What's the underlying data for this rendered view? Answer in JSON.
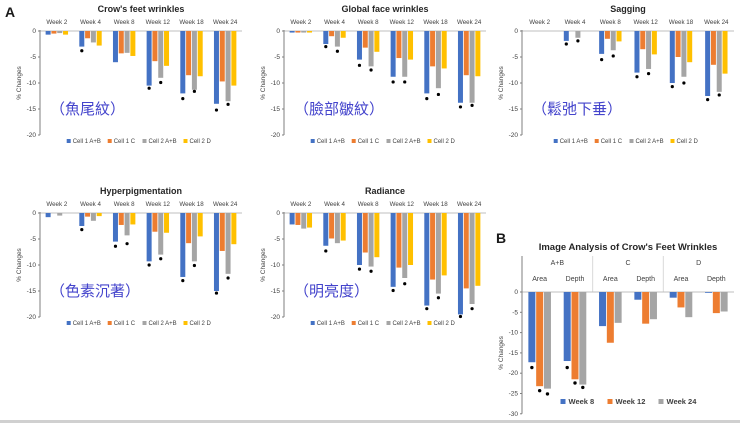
{
  "page": {
    "panel_a_label": "A",
    "panel_b_label": "B"
  },
  "colors": {
    "blue": "#4472C4",
    "orange": "#ED7D31",
    "gray": "#A5A5A5",
    "yellow": "#FFC000",
    "sig_dot": "#000000",
    "caption": "#4444CC",
    "title_text": "#262626",
    "axis_text": "#404040",
    "axis_line": "#7f7f7f",
    "grid_line": "#bfbfbf",
    "separator": "#d9d9d9"
  },
  "chart_data": [
    {
      "id": "crows-feet-wrinkles",
      "panel": "A",
      "type": "bar",
      "title": "Crow's feet wrinkles",
      "caption": "（魚尾紋）",
      "ylabel": "% Changes",
      "ylim": [
        0,
        -20
      ],
      "yticks": [
        0,
        -5,
        -10,
        -15,
        -20
      ],
      "categories": [
        "Week 2",
        "Week 4",
        "Week 8",
        "Week 12",
        "Week 18",
        "Week 24"
      ],
      "legend_position": "bottom-inside",
      "series": [
        {
          "name": "Cell 1 A+B",
          "color": "blue",
          "values": [
            -0.7,
            -3.0,
            -6.0,
            -10.5,
            -12.0,
            -14.0
          ]
        },
        {
          "name": "Cell 1 C",
          "color": "orange",
          "values": [
            -0.5,
            -1.4,
            -4.3,
            -5.8,
            -8.5,
            -9.7
          ]
        },
        {
          "name": "Cell 2 A+B",
          "color": "gray",
          "values": [
            -0.4,
            -2.2,
            -4.2,
            -9.0,
            -11.3,
            -13.5
          ]
        },
        {
          "name": "Cell 2 D",
          "color": "yellow",
          "values": [
            -0.7,
            -2.8,
            -4.8,
            -6.7,
            -8.7,
            -10.5
          ]
        }
      ],
      "sig_dots": [
        {
          "category": "Week 4",
          "series": "Cell 1 A+B",
          "y": -3.8
        },
        {
          "category": "Week 12",
          "series": "Cell 1 A+B",
          "y": -11.0
        },
        {
          "category": "Week 12",
          "series": "Cell 2 A+B",
          "y": -9.9
        },
        {
          "category": "Week 18",
          "series": "Cell 1 A+B",
          "y": -13.0
        },
        {
          "category": "Week 18",
          "series": "Cell 2 A+B",
          "y": -11.6
        },
        {
          "category": "Week 24",
          "series": "Cell 1 A+B",
          "y": -15.2
        },
        {
          "category": "Week 24",
          "series": "Cell 2 A+B",
          "y": -14.1
        }
      ]
    },
    {
      "id": "global-face-wrinkles",
      "panel": "A",
      "type": "bar",
      "title": "Global face wrinkles",
      "caption": "（臉部皺紋）",
      "ylabel": "% Changes",
      "ylim": [
        0,
        -20
      ],
      "yticks": [
        0,
        -5,
        -10,
        -15,
        -20
      ],
      "categories": [
        "Week 2",
        "Week 4",
        "Week 8",
        "Week 12",
        "Week 18",
        "Week 24"
      ],
      "legend_position": "bottom-inside",
      "series": [
        {
          "name": "Cell 1 A+B",
          "color": "blue",
          "values": [
            -0.3,
            -2.5,
            -5.5,
            -8.8,
            -12.0,
            -13.8
          ]
        },
        {
          "name": "Cell 1 C",
          "color": "orange",
          "values": [
            -0.3,
            -1.0,
            -3.2,
            -5.2,
            -6.8,
            -8.5
          ]
        },
        {
          "name": "Cell 2 A+B",
          "color": "gray",
          "values": [
            -0.3,
            -3.0,
            -6.8,
            -8.8,
            -11.0,
            -13.8
          ]
        },
        {
          "name": "Cell 2 D",
          "color": "yellow",
          "values": [
            -0.3,
            -1.3,
            -4.0,
            -5.5,
            -7.2,
            -8.7
          ]
        }
      ],
      "sig_dots": [
        {
          "category": "Week 4",
          "series": "Cell 1 A+B",
          "y": -3.0
        },
        {
          "category": "Week 4",
          "series": "Cell 2 A+B",
          "y": -3.9
        },
        {
          "category": "Week 8",
          "series": "Cell 1 A+B",
          "y": -6.6
        },
        {
          "category": "Week 8",
          "series": "Cell 2 A+B",
          "y": -7.5
        },
        {
          "category": "Week 12",
          "series": "Cell 1 A+B",
          "y": -9.8
        },
        {
          "category": "Week 12",
          "series": "Cell 2 A+B",
          "y": -9.8
        },
        {
          "category": "Week 18",
          "series": "Cell 1 A+B",
          "y": -13.0
        },
        {
          "category": "Week 18",
          "series": "Cell 2 A+B",
          "y": -12.2
        },
        {
          "category": "Week 24",
          "series": "Cell 1 A+B",
          "y": -14.6
        },
        {
          "category": "Week 24",
          "series": "Cell 2 A+B",
          "y": -14.3
        }
      ]
    },
    {
      "id": "sagging",
      "panel": "A",
      "type": "bar",
      "title": "Sagging",
      "caption": "（鬆弛下垂）",
      "ylabel": "% Changes",
      "ylim": [
        0,
        -20
      ],
      "yticks": [
        0,
        -5,
        -10,
        -15,
        -20
      ],
      "categories": [
        "Week 2",
        "Week 4",
        "Week 8",
        "Week 12",
        "Week 18",
        "Week 24"
      ],
      "legend_position": "bottom-inside",
      "series": [
        {
          "name": "Cell 1 A+B",
          "color": "blue",
          "values": [
            0,
            -1.9,
            -4.4,
            -8.0,
            -10.0,
            -12.5
          ]
        },
        {
          "name": "Cell 1 C",
          "color": "orange",
          "values": [
            0,
            0,
            -1.5,
            -3.5,
            -5.0,
            -6.5
          ]
        },
        {
          "name": "Cell 2 A+B",
          "color": "gray",
          "values": [
            0,
            -1.3,
            -3.7,
            -7.3,
            -8.8,
            -11.7
          ]
        },
        {
          "name": "Cell 2 D",
          "color": "yellow",
          "values": [
            0,
            0,
            -2.0,
            -4.5,
            -6.0,
            -8.2
          ]
        }
      ],
      "sig_dots": [
        {
          "category": "Week 4",
          "series": "Cell 1 A+B",
          "y": -2.5
        },
        {
          "category": "Week 4",
          "series": "Cell 2 A+B",
          "y": -1.9
        },
        {
          "category": "Week 8",
          "series": "Cell 1 A+B",
          "y": -5.5
        },
        {
          "category": "Week 8",
          "series": "Cell 2 A+B",
          "y": -4.8
        },
        {
          "category": "Week 12",
          "series": "Cell 1 A+B",
          "y": -8.8
        },
        {
          "category": "Week 12",
          "series": "Cell 2 A+B",
          "y": -8.2
        },
        {
          "category": "Week 18",
          "series": "Cell 1 A+B",
          "y": -10.7
        },
        {
          "category": "Week 18",
          "series": "Cell 2 A+B",
          "y": -10.0
        },
        {
          "category": "Week 24",
          "series": "Cell 1 A+B",
          "y": -13.2
        },
        {
          "category": "Week 24",
          "series": "Cell 2 A+B",
          "y": -12.3
        }
      ]
    },
    {
      "id": "hyperpigmentation",
      "panel": "A",
      "type": "bar",
      "title": "Hyperpigmentation",
      "caption": "（色素沉著）",
      "ylabel": "% Changes",
      "ylim": [
        0,
        -20
      ],
      "yticks": [
        0,
        -5,
        -10,
        -15,
        -20
      ],
      "categories": [
        "Week 2",
        "Week 4",
        "Week 8",
        "Week 12",
        "Week 18",
        "Week 24"
      ],
      "legend_position": "bottom-inside",
      "series": [
        {
          "name": "Cell 1 A+B",
          "color": "blue",
          "values": [
            -0.8,
            -2.5,
            -5.5,
            -9.3,
            -12.3,
            -15.0
          ]
        },
        {
          "name": "Cell 1 C",
          "color": "orange",
          "values": [
            0,
            -0.7,
            -2.3,
            -3.6,
            -5.8,
            -7.3
          ]
        },
        {
          "name": "Cell 2 A+B",
          "color": "gray",
          "values": [
            -0.5,
            -1.5,
            -4.3,
            -8.0,
            -9.3,
            -11.7
          ]
        },
        {
          "name": "Cell 2 D",
          "color": "yellow",
          "values": [
            0,
            -0.6,
            -2.2,
            -3.8,
            -4.5,
            -6.0
          ]
        }
      ],
      "sig_dots": [
        {
          "category": "Week 4",
          "series": "Cell 1 A+B",
          "y": -3.2
        },
        {
          "category": "Week 8",
          "series": "Cell 1 A+B",
          "y": -6.4
        },
        {
          "category": "Week 8",
          "series": "Cell 2 A+B",
          "y": -5.9
        },
        {
          "category": "Week 12",
          "series": "Cell 1 A+B",
          "y": -10.0
        },
        {
          "category": "Week 12",
          "series": "Cell 2 A+B",
          "y": -8.8
        },
        {
          "category": "Week 18",
          "series": "Cell 1 A+B",
          "y": -13.0
        },
        {
          "category": "Week 18",
          "series": "Cell 2 A+B",
          "y": -10.1
        },
        {
          "category": "Week 24",
          "series": "Cell 1 A+B",
          "y": -15.4
        },
        {
          "category": "Week 24",
          "series": "Cell 2 A+B",
          "y": -12.5
        }
      ]
    },
    {
      "id": "radiance",
      "panel": "A",
      "type": "bar",
      "title": "Radiance",
      "caption": "（明亮度）",
      "ylabel": "% Changes",
      "ylim": [
        0,
        -20
      ],
      "yticks": [
        0,
        -5,
        -10,
        -15,
        -20
      ],
      "categories": [
        "Week 2",
        "Week 4",
        "Week 8",
        "Week 12",
        "Week 18",
        "Week 24"
      ],
      "legend_position": "bottom-inside",
      "series": [
        {
          "name": "Cell 1 A+B",
          "color": "blue",
          "values": [
            -2.2,
            -6.3,
            -10.0,
            -14.2,
            -17.8,
            -19.5
          ]
        },
        {
          "name": "Cell 1 C",
          "color": "orange",
          "values": [
            -2.3,
            -4.9,
            -7.6,
            -10.5,
            -12.8,
            -14.5
          ]
        },
        {
          "name": "Cell 2 A+B",
          "color": "gray",
          "values": [
            -3.0,
            -5.8,
            -10.3,
            -12.5,
            -15.5,
            -17.5
          ]
        },
        {
          "name": "Cell 2 D",
          "color": "yellow",
          "values": [
            -2.8,
            -5.3,
            -8.5,
            -10.0,
            -12.0,
            -14.0
          ]
        }
      ],
      "sig_dots": [
        {
          "category": "Week 4",
          "series": "Cell 1 A+B",
          "y": -7.3
        },
        {
          "category": "Week 8",
          "series": "Cell 1 A+B",
          "y": -10.8
        },
        {
          "category": "Week 8",
          "series": "Cell 2 A+B",
          "y": -11.2
        },
        {
          "category": "Week 12",
          "series": "Cell 1 A+B",
          "y": -14.9
        },
        {
          "category": "Week 12",
          "series": "Cell 2 A+B",
          "y": -13.6
        },
        {
          "category": "Week 18",
          "series": "Cell 1 A+B",
          "y": -18.4
        },
        {
          "category": "Week 18",
          "series": "Cell 2 A+B",
          "y": -16.3
        },
        {
          "category": "Week 24",
          "series": "Cell 1 A+B",
          "y": -19.9
        },
        {
          "category": "Week 24",
          "series": "Cell 2 A+B",
          "y": -18.4
        }
      ]
    },
    {
      "id": "image-analysis-crows-feet",
      "panel": "B",
      "type": "bar",
      "title": "Image Analysis of Crow's Feet Wrinkles",
      "ylabel": "% Changes",
      "ylim": [
        0,
        -30
      ],
      "yticks": [
        0,
        -5,
        -10,
        -15,
        -20,
        -25,
        -30
      ],
      "group_headers": [
        "A+B",
        "C",
        "D"
      ],
      "sub_headers": [
        "Area",
        "Depth"
      ],
      "categories": [
        "A+B Area",
        "A+B Depth",
        "C Area",
        "C Depth",
        "D Area",
        "D Depth"
      ],
      "legend_position": "bottom-inside",
      "series": [
        {
          "name": "Week 8",
          "color": "blue",
          "values": [
            -17.3,
            -17.0,
            -8.4,
            -1.9,
            -1.4,
            -0.2
          ]
        },
        {
          "name": "Week 12",
          "color": "orange",
          "values": [
            -23.2,
            -21.5,
            -12.5,
            -7.8,
            -3.8,
            -5.2
          ]
        },
        {
          "name": "Week 24",
          "color": "gray",
          "values": [
            -23.8,
            -22.8,
            -7.6,
            -6.7,
            -6.2,
            -4.8
          ]
        }
      ],
      "sig_dots": [
        {
          "category": "A+B Area",
          "series": "Week 8",
          "y": -18.6
        },
        {
          "category": "A+B Area",
          "series": "Week 12",
          "y": -24.3
        },
        {
          "category": "A+B Area",
          "series": "Week 24",
          "y": -25.1
        },
        {
          "category": "A+B Depth",
          "series": "Week 8",
          "y": -18.6
        },
        {
          "category": "A+B Depth",
          "series": "Week 12",
          "y": -22.4
        },
        {
          "category": "A+B Depth",
          "series": "Week 24",
          "y": -23.5
        }
      ]
    }
  ]
}
